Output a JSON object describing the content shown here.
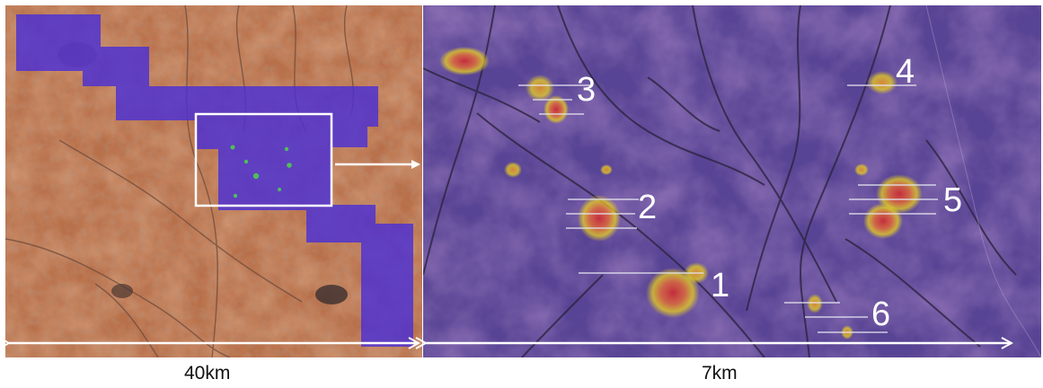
{
  "overview": {
    "scale_label": "40km"
  },
  "detail": {
    "scale_label": "7km",
    "anomalies": [
      {
        "label": "1"
      },
      {
        "label": "2"
      },
      {
        "label": "3"
      },
      {
        "label": "4"
      },
      {
        "label": "5"
      },
      {
        "label": "6"
      }
    ]
  },
  "colors": {
    "terrain": "#b0663f",
    "survey_overlay": "#4b2fd6",
    "anomaly_hot": "#d84030",
    "anomaly_warm": "#e8d020",
    "annotation": "#ffffff"
  }
}
